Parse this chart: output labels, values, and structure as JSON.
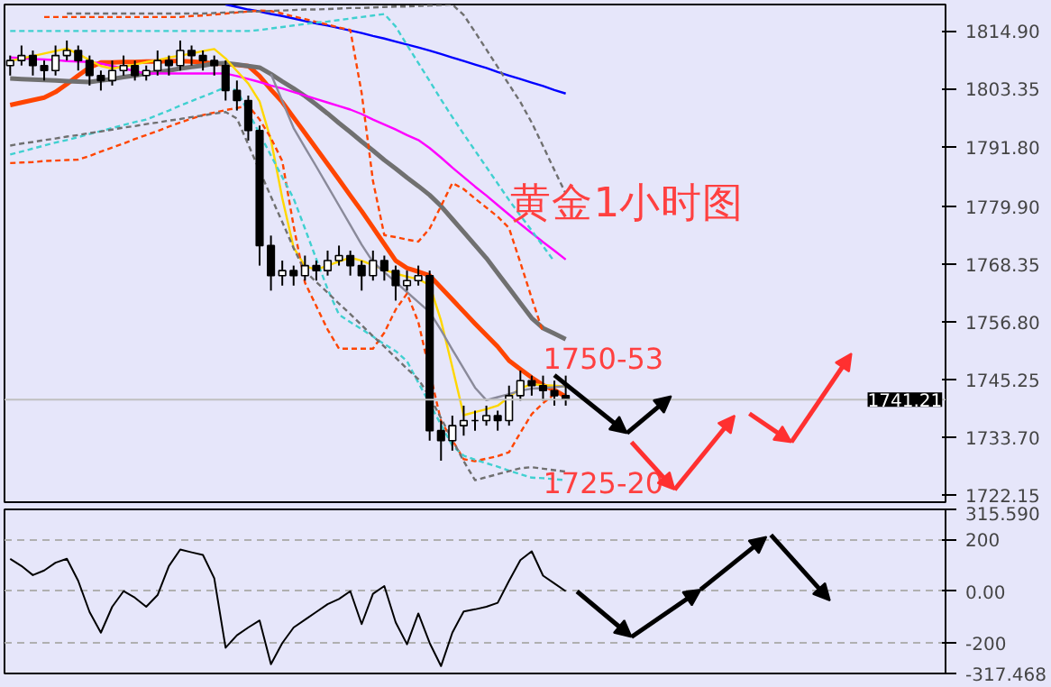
{
  "chart_data": [
    {
      "type": "candlestick",
      "title": "黄金1小时图",
      "categories": [
        null,
        null,
        null,
        null,
        null,
        null,
        null,
        null,
        null,
        null,
        null,
        null,
        null,
        null,
        null,
        null,
        null,
        null,
        null,
        null,
        null,
        null,
        null,
        null,
        null,
        null,
        null,
        null,
        null,
        null,
        null,
        null,
        null,
        null,
        null,
        null,
        null,
        null,
        null,
        null,
        null,
        null,
        null,
        null,
        null,
        null,
        null,
        null,
        null,
        null
      ],
      "ohlc": [
        [
          1808,
          1810,
          1806,
          1809
        ],
        [
          1809,
          1812,
          1808,
          1810
        ],
        [
          1810,
          1811,
          1806,
          1808
        ],
        [
          1808,
          1809,
          1805,
          1807
        ],
        [
          1807,
          1812,
          1806,
          1810
        ],
        [
          1810,
          1813,
          1809,
          1811
        ],
        [
          1811,
          1812,
          1807,
          1809
        ],
        [
          1809,
          1810,
          1804,
          1806
        ],
        [
          1806,
          1807,
          1803,
          1805
        ],
        [
          1805,
          1809,
          1804,
          1807
        ],
        [
          1807,
          1810,
          1806,
          1808
        ],
        [
          1808,
          1809,
          1805,
          1806
        ],
        [
          1806,
          1808,
          1805,
          1807
        ],
        [
          1807,
          1811,
          1806,
          1809
        ],
        [
          1809,
          1810,
          1806,
          1808
        ],
        [
          1808,
          1813,
          1807,
          1811
        ],
        [
          1811,
          1812,
          1808,
          1810
        ],
        [
          1810,
          1811,
          1807,
          1809
        ],
        [
          1809,
          1810,
          1806,
          1808
        ],
        [
          1808,
          1809,
          1801,
          1803
        ],
        [
          1803,
          1805,
          1799,
          1801
        ],
        [
          1801,
          1802,
          1793,
          1795
        ],
        [
          1795,
          1796,
          1768,
          1772
        ],
        [
          1772,
          1774,
          1763,
          1766
        ],
        [
          1766,
          1769,
          1764,
          1767
        ],
        [
          1767,
          1768,
          1764,
          1766
        ],
        [
          1766,
          1770,
          1765,
          1768
        ],
        [
          1768,
          1769,
          1765,
          1767
        ],
        [
          1767,
          1771,
          1766,
          1769
        ],
        [
          1769,
          1772,
          1768,
          1770
        ],
        [
          1770,
          1771,
          1766,
          1768
        ],
        [
          1768,
          1769,
          1763,
          1766
        ],
        [
          1766,
          1771,
          1765,
          1769
        ],
        [
          1769,
          1770,
          1765,
          1767
        ],
        [
          1767,
          1768,
          1761,
          1764
        ],
        [
          1764,
          1767,
          1763,
          1765
        ],
        [
          1765,
          1768,
          1764,
          1766
        ],
        [
          1766,
          1767,
          1733,
          1735
        ],
        [
          1735,
          1737,
          1729,
          1733
        ],
        [
          1733,
          1738,
          1731,
          1736
        ],
        [
          1736,
          1740,
          1734,
          1737
        ],
        [
          1737,
          1739,
          1735,
          1737
        ],
        [
          1737,
          1740,
          1736,
          1738
        ],
        [
          1738,
          1739,
          1735,
          1737
        ],
        [
          1737,
          1744,
          1736,
          1742
        ],
        [
          1742,
          1747,
          1741,
          1745
        ],
        [
          1745,
          1746,
          1742,
          1744
        ],
        [
          1744,
          1746,
          1741,
          1743
        ],
        [
          1743,
          1745,
          1740,
          1742
        ],
        [
          1742,
          1746,
          1740,
          1741.21
        ]
      ],
      "series": [
        {
          "type": "line",
          "color": "#ff4500",
          "values": [
            1800.1,
            1800.6,
            1801.1,
            1801.6,
            1802.7,
            1804.3,
            1806,
            1807.6,
            1808.6,
            1808.6,
            1808.7,
            1808.7,
            1808.8,
            1808.8,
            1808.9,
            1808.9,
            1808.8,
            1808.6,
            1808.4,
            1808.3,
            1808.1,
            1807.9,
            1805.9,
            1803.2,
            1800.7,
            1797.6,
            1794.5,
            1791.4,
            1788.3,
            1785.2,
            1782,
            1778.9,
            1775.6,
            1772.3,
            1769,
            1767.5,
            1766.8,
            1766,
            1763.6,
            1761.2,
            1758.8,
            1756.4,
            1754.1,
            1751.8,
            1749,
            1747.3,
            1745.6,
            1744.1,
            1743.1,
            1741.8
          ]
        },
        {
          "type": "line",
          "color": "#707070",
          "values": [
            1805.4,
            1805.3,
            1805.2,
            1805.1,
            1805,
            1804.9,
            1804.8,
            1804.7,
            1805,
            1805.3,
            1805.7,
            1806,
            1806.4,
            1806.7,
            1807,
            1807.4,
            1807.7,
            1808,
            1808.4,
            1808.5,
            1808.2,
            1807.9,
            1807.6,
            1806.3,
            1804.8,
            1803.4,
            1801.9,
            1800.2,
            1798.4,
            1796.5,
            1794.7,
            1792.8,
            1791,
            1789.1,
            1787.4,
            1785.6,
            1783.9,
            1782.1,
            1779.9,
            1777.3,
            1774.7,
            1772.1,
            1769.5,
            1766.5,
            1763.5,
            1760.5,
            1757.5,
            1755.5,
            1754.4,
            1753.3
          ]
        },
        {
          "type": "line",
          "color": "#ff00ff",
          "values": [
            1809.6,
            1809.5,
            1809.3,
            1809.2,
            1809.1,
            1808.9,
            1808.8,
            1808.7,
            1808.4,
            1807.9,
            1807.4,
            1806.9,
            1806.4,
            1806.4,
            1806.4,
            1806.4,
            1806.4,
            1806.4,
            1806.4,
            1806.4,
            1805.9,
            1805.3,
            1804.7,
            1804,
            1803.4,
            1802.7,
            1802,
            1801.3,
            1800.6,
            1799.9,
            1799.2,
            1798.3,
            1797.2,
            1796.2,
            1795.2,
            1794.1,
            1793.1,
            1791.5,
            1789.6,
            1787.6,
            1785.7,
            1783.8,
            1782,
            1780.1,
            1778.2,
            1776.3,
            1774.5,
            1772.7,
            1771,
            1769.2
          ]
        },
        {
          "type": "line",
          "color": "#0000ff",
          "values": [
            null,
            null,
            null,
            null,
            null,
            null,
            null,
            null,
            null,
            null,
            null,
            null,
            null,
            null,
            null,
            null,
            null,
            null,
            null,
            1820.2,
            1819.7,
            1819.2,
            1818.8,
            1818.3,
            1817.9,
            1817.4,
            1816.9,
            1816.4,
            1816,
            1815.5,
            1815,
            1814.5,
            1813.9,
            1813.4,
            1812.8,
            1812.2,
            1811.6,
            1811,
            1810.3,
            1809.6,
            1808.9,
            1808.2,
            1807.5,
            1806.7,
            1806,
            1805.3,
            1804.6,
            1803.9,
            1803.1,
            1802.4
          ]
        },
        {
          "type": "line",
          "color": "#ffd700",
          "values": [
            1808.9,
            1809.4,
            1809.9,
            1810.4,
            1810.9,
            1811.4,
            1810.3,
            1809.1,
            1807.9,
            1807.4,
            1807.8,
            1808.2,
            1808.7,
            1809.1,
            1809.6,
            1810,
            1810.4,
            1810.9,
            1811.3,
            1809.4,
            1806.9,
            1804.4,
            1800.8,
            1793.1,
            1781.5,
            1771.6,
            1767.9,
            1767.2,
            1768,
            1768.8,
            1769.6,
            1769,
            1768.1,
            1767.2,
            1766.4,
            1765.8,
            1765.3,
            1764.1,
            1757,
            1747.7,
            1738.1,
            1738.7,
            1739.3,
            1740,
            1741.7,
            1743.5,
            1744.3,
            1744.1,
            1744,
            1743.8
          ]
        },
        {
          "type": "line",
          "color": "#8a8a9a",
          "values": [
            null,
            null,
            null,
            null,
            null,
            null,
            null,
            null,
            null,
            null,
            null,
            null,
            null,
            null,
            null,
            null,
            null,
            null,
            null,
            null,
            null,
            null,
            null,
            1806.3,
            1800.9,
            1795.5,
            1791.6,
            1787.8,
            1783.9,
            1780,
            1776.1,
            1772.2,
            1768.7,
            1766.7,
            1764.7,
            1762.7,
            1760.7,
            1758.7,
            1755.1,
            1751.2,
            1747.4,
            1743.6,
            1741.1,
            1741.7,
            1742.3,
            1743,
            1743.4,
            1743.5,
            1743.7,
            1743.9
          ]
        },
        {
          "type": "line",
          "line_style": "dashed",
          "color": "#ff4500",
          "values": [
            null,
            null,
            null,
            1817.7,
            1817.7,
            1817.7,
            1817.7,
            1817.7,
            1817.7,
            1817.7,
            1817.7,
            1817.7,
            1817.7,
            1817.7,
            1817.7,
            1817.7,
            1817.9,
            1818,
            1818.2,
            1818.4,
            1818.6,
            1818.8,
            1819,
            1818.9,
            1818.4,
            1817.8,
            1817.3,
            1816.7,
            1816.2,
            1815.6,
            1815.1,
            1802.5,
            1784.9,
            1774.1,
            1773.7,
            1773.2,
            1772.8,
            1775.4,
            1779.9,
            1784.5,
            1783.3,
            1781.4,
            1779.6,
            1777.8,
            1775.5,
            1768.6,
            1761.5,
            1754.6,
            null,
            null
          ]
        },
        {
          "type": "line",
          "line_style": "dashed",
          "color": "#ff4500",
          "values": [
            1788.5,
            1788.6,
            1788.7,
            1788.9,
            1789,
            1789.1,
            1789.2,
            1789.9,
            1790.8,
            1791.6,
            1792.4,
            1793.3,
            1794.1,
            1794.9,
            1795.8,
            1796.6,
            1797.4,
            1798.1,
            1798.6,
            1799.1,
            1799.5,
            1800,
            1797.2,
            1793.5,
            1788.9,
            1775.9,
            1764.6,
            1759.9,
            1755.2,
            1751.4,
            1751.4,
            1751.4,
            1751.4,
            1754.6,
            1759.2,
            1762.4,
            1756.7,
            null,
            1736.9,
            1733.1,
            1729.3,
            1728.9,
            1729.4,
            1729.9,
            1730.7,
            1734.6,
            1738.3,
            1740.5,
            1742.3,
            null
          ]
        },
        {
          "type": "line",
          "line_style": "dashed",
          "color": "#40d0d0",
          "values": [
            1814.9,
            1814.9,
            1814.9,
            1814.9,
            1814.9,
            1814.9,
            1814.9,
            1814.9,
            1814.9,
            1814.9,
            1814.9,
            1814.9,
            1814.9,
            1814.9,
            1814.9,
            1814.9,
            1814.9,
            1814.9,
            1814.9,
            1814.9,
            1814.9,
            1814.9,
            1815.1,
            1815.4,
            1815.7,
            1816,
            1816.3,
            1816.6,
            1816.8,
            1817.1,
            1817.4,
            1817.7,
            1818,
            1818.3,
            1815.8,
            1812.1,
            1808.5,
            1804.9,
            1801.2,
            1797.7,
            1794.3,
            1791,
            1787.7,
            1784.4,
            1781.1,
            1778,
            1775,
            1771.9,
            1768.8,
            null
          ]
        },
        {
          "type": "line",
          "line_style": "dashed",
          "color": "#40d0d0",
          "values": [
            1790.2,
            1790.8,
            1791.4,
            1792,
            1792.6,
            1793.1,
            1793.7,
            1794.3,
            1794.9,
            1795.5,
            1796.1,
            1796.7,
            1797.2,
            1798.1,
            1799,
            1800,
            1800.9,
            1801.8,
            1802.7,
            1803.7,
            1803,
            1798.7,
            1794.4,
            1790,
            1785.7,
            1781.4,
            1775.4,
            1769.3,
            1763.3,
            1758.2,
            1756.7,
            1755.3,
            1753.8,
            1752.3,
            1750.9,
            1748.9,
            1744.6,
            1740.4,
            1736.2,
            1732,
            1730,
            1729.2,
            1728.5,
            1727.8,
            1727,
            1726.3,
            1725.6,
            1725.5,
            1725.3,
            1725.1
          ]
        },
        {
          "type": "line",
          "line_style": "dashed",
          "color": "#707070",
          "values": [
            null,
            null,
            null,
            null,
            null,
            1818.4,
            1818.4,
            1818.4,
            1818.4,
            1818.4,
            1818.4,
            1818.4,
            1818.4,
            1818.4,
            1818.4,
            1818.4,
            1818.4,
            1818.4,
            1818.5,
            1818.6,
            1818.7,
            1818.8,
            1818.8,
            1818.9,
            1819,
            1819.1,
            1819.2,
            1819.2,
            1819.3,
            1819.4,
            1819.5,
            1819.5,
            1819.6,
            1819.7,
            1819.8,
            1819.8,
            1819.9,
            1820,
            1820.1,
            1820.2,
            1818.1,
            1814.7,
            1811.2,
            1807.7,
            1804.2,
            1800.7,
            1796.6,
            1791.9,
            1787.1,
            1782.4
          ]
        },
        {
          "type": "line",
          "line_style": "dashed",
          "color": "#707070",
          "values": [
            1792,
            1792.4,
            1792.7,
            1793.1,
            1793.4,
            1793.8,
            1794.1,
            1794.5,
            1794.8,
            1795.2,
            1795.6,
            1795.9,
            1796.3,
            1796.6,
            1797,
            1797.3,
            1797.7,
            1798,
            1798.4,
            1798.7,
            1797.4,
            1792.2,
            1787,
            1781.8,
            1776.7,
            1771.5,
            1766.9,
            1764.7,
            1762.6,
            1760.4,
            1758.3,
            1756.1,
            1753.9,
            1751.8,
            1749.6,
            1747.4,
            1745.3,
            1741.8,
            1737.5,
            1733.2,
            1728.9,
            1725.1,
            1725.7,
            1726.3,
            1726.9,
            1727.5,
            1727.7,
            1727.4,
            1727.1,
            1726.8
          ]
        }
      ],
      "ylim": [
        1720.7,
        1820.2
      ],
      "yticks": [
        {
          "value": 1814.9,
          "label": "1814.90"
        },
        1803.35,
        {
          "value": 1791.8,
          "label": "1791.80"
        },
        {
          "value": 1779.9,
          "label": "1779.90"
        },
        1768.35,
        {
          "value": 1756.8,
          "label": "1756.80"
        },
        1745.25,
        {
          "value": 1733.7,
          "label": "1733.70"
        },
        1722.15
      ],
      "tick_labels": "y",
      "ref_lines": [
        {
          "axis": "y",
          "value": 1741.21,
          "label": "1741.21",
          "color": "#c0c0c0"
        }
      ],
      "annotations": [
        "1750-53",
        "1725-20"
      ]
    },
    {
      "type": "line",
      "categories": [
        null,
        null,
        null,
        null,
        null,
        null,
        null,
        null,
        null,
        null,
        null,
        null,
        null,
        null,
        null,
        null,
        null,
        null,
        null,
        null,
        null,
        null,
        null,
        null,
        null,
        null,
        null,
        null,
        null,
        null,
        null,
        null,
        null,
        null,
        null,
        null,
        null,
        null,
        null,
        null,
        null,
        null,
        null,
        null,
        null,
        null,
        null,
        null,
        null,
        null
      ],
      "values": [
        125,
        97,
        62,
        80,
        110,
        125,
        40,
        -80,
        -160,
        -60,
        0,
        -25,
        -60,
        -15,
        97,
        161,
        150,
        140,
        50,
        -218,
        -170,
        -140,
        -113,
        -282,
        -200,
        -140,
        -110,
        -80,
        -50,
        -30,
        0,
        -127,
        -10,
        20,
        -120,
        -205,
        -86,
        -200,
        -289,
        -160,
        -78,
        -70,
        -60,
        -45,
        40,
        120,
        154,
        60,
        30,
        0
      ],
      "color": "#000000",
      "ylim": [
        -317.468,
        315.59
      ],
      "yticks": [
        {
          "value": 315.59,
          "label": "315.590"
        },
        200,
        {
          "value": 0,
          "label": "0.00"
        },
        -200,
        -317.468
      ],
      "tick_labels": "y",
      "grid": "y"
    }
  ]
}
